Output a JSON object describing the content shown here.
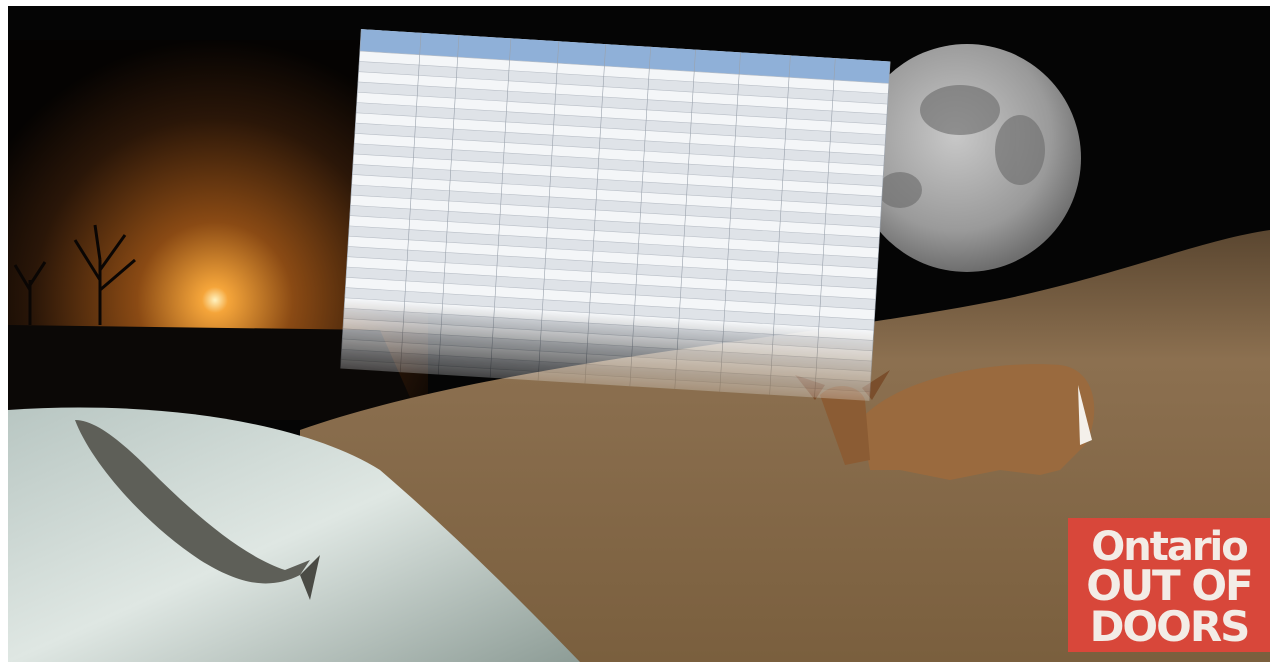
{
  "logo": {
    "lines": [
      "Ontario",
      "OUT OF",
      "DOORS"
    ]
  }
}
